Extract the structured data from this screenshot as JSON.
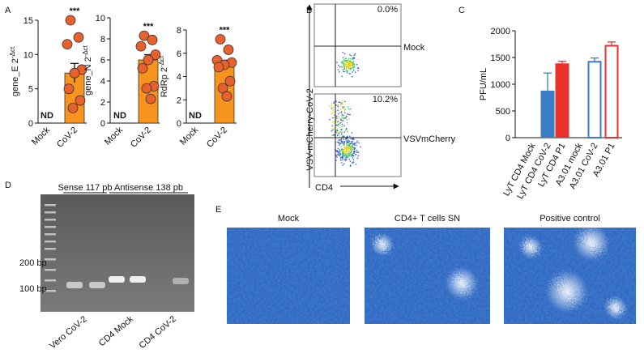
{
  "panel_labels": [
    "A",
    "B",
    "C",
    "D",
    "E"
  ],
  "chart_data": [
    {
      "type": "bar",
      "ylabel": "gene_E 2",
      "ylabel_sup": "-Δct",
      "categories": [
        "Mock",
        "CoV-2"
      ],
      "values": [
        null,
        7.3
      ],
      "errors": [
        null,
        1.4
      ],
      "annotations": [
        "ND",
        "***"
      ],
      "points": [
        15,
        12.5,
        11.5,
        7.8,
        7.3,
        5.0,
        3.3,
        2.2
      ],
      "color": "#f7941d",
      "point_color": "#e8602c",
      "ylim": [
        0,
        15
      ],
      "yticks": [
        0,
        5,
        10,
        15
      ]
    },
    {
      "type": "bar",
      "ylabel": "gene_N 2",
      "ylabel_sup": "-Δct",
      "categories": [
        "Mock",
        "CoV-2"
      ],
      "values": [
        null,
        6.0
      ],
      "errors": [
        null,
        0.5
      ],
      "annotations": [
        "ND",
        "***"
      ],
      "points": [
        8.3,
        7.9,
        7.3,
        6.5,
        6.0,
        5.2,
        3.5,
        3.3,
        2.3
      ],
      "color": "#f7941d",
      "point_color": "#e8602c",
      "ylim": [
        0,
        10
      ],
      "yticks": [
        0,
        2,
        4,
        6,
        8,
        10
      ]
    },
    {
      "type": "bar",
      "ylabel": "RdRp 2",
      "ylabel_sup": "-Δct",
      "categories": [
        "Mock",
        "CoV-2"
      ],
      "values": [
        null,
        5.0
      ],
      "errors": [
        null,
        0.4
      ],
      "annotations": [
        "ND",
        "***"
      ],
      "points": [
        7.2,
        6.3,
        5.4,
        5.2,
        5.0,
        4.8,
        3.6,
        3.0,
        2.3
      ],
      "color": "#f7941d",
      "point_color": "#e8602c",
      "ylim": [
        0,
        8
      ],
      "yticks": [
        0,
        2,
        4,
        6,
        8
      ]
    },
    {
      "type": "bar",
      "ylabel": "PFU/mL",
      "categories": [
        "LyT CD4 Mock",
        "LyT CD4 CoV-2",
        "LyT CD4 P1",
        "A3.01 mock",
        "A3.01 CoV-2",
        "A3.01 P1"
      ],
      "values": [
        0,
        880,
        1390,
        0,
        1420,
        1720
      ],
      "errors": [
        0,
        330,
        40,
        0,
        70,
        70
      ],
      "colors": [
        "#3b7dc4",
        "#3b7dc4",
        "#e8322b",
        "#3b7dc4",
        "#3b7dc4",
        "#e8322b"
      ],
      "filled": [
        true,
        true,
        true,
        false,
        false,
        false
      ],
      "ylim": [
        0,
        2000
      ],
      "yticks": [
        0,
        500,
        1000,
        1500,
        2000
      ]
    }
  ],
  "flow": {
    "ylabel": "VSV-mCherry-CoV-2",
    "xlabel": "CD4",
    "plots": [
      {
        "percent": "0.0%",
        "label": "Mock"
      },
      {
        "percent": "10.2%",
        "label": "VSVmCherry"
      }
    ]
  },
  "gel": {
    "groups": [
      "Sense 117 pb",
      "Antisense 138 pb"
    ],
    "markers": [
      "200 bp",
      "100 bp"
    ],
    "lanes": [
      {
        "label": "Vero CoV-2",
        "color": "#e8322b"
      },
      {
        "label": "CD4 Mock",
        "color": "#3b7dc4"
      },
      {
        "label": "CD4 CoV-2",
        "color": "#f7941d"
      }
    ]
  },
  "images": {
    "titles": [
      "Mock",
      "CD4+ T cells SN",
      "Positive control"
    ]
  }
}
